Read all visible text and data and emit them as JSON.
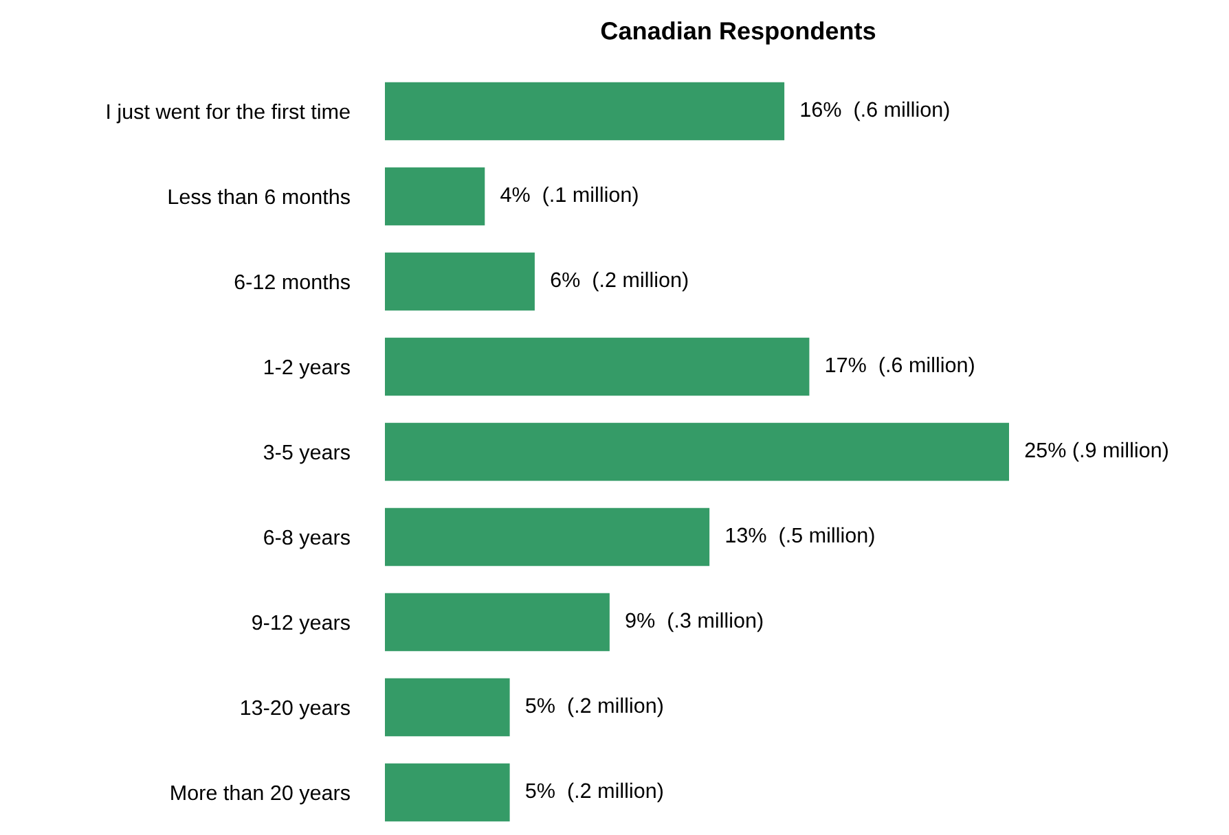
{
  "chart_data": {
    "type": "bar",
    "orientation": "horizontal",
    "title": "Canadian Respondents",
    "categories": [
      "I just went for the first time",
      "Less than 6 months",
      "6-12 months",
      "1-2 years",
      "3-5 years",
      "6-8 years",
      "9-12 years",
      "13-20 years",
      "More than 20 years"
    ],
    "values": [
      16,
      4,
      6,
      17,
      25,
      13,
      9,
      5,
      5
    ],
    "value_labels": [
      "16%  (.6 million)",
      "4%  (.1 million)",
      "6%  (.2 million)",
      "17%  (.6 million)",
      "25% (.9 million)",
      "13%  (.5 million)",
      "9%  (.3 million)",
      "5%  (.2 million)",
      "5%  (.2 million)"
    ],
    "color": "#359b67",
    "xlim": [
      0,
      25
    ],
    "tick_labels": "y",
    "grid": false,
    "legend": false
  }
}
